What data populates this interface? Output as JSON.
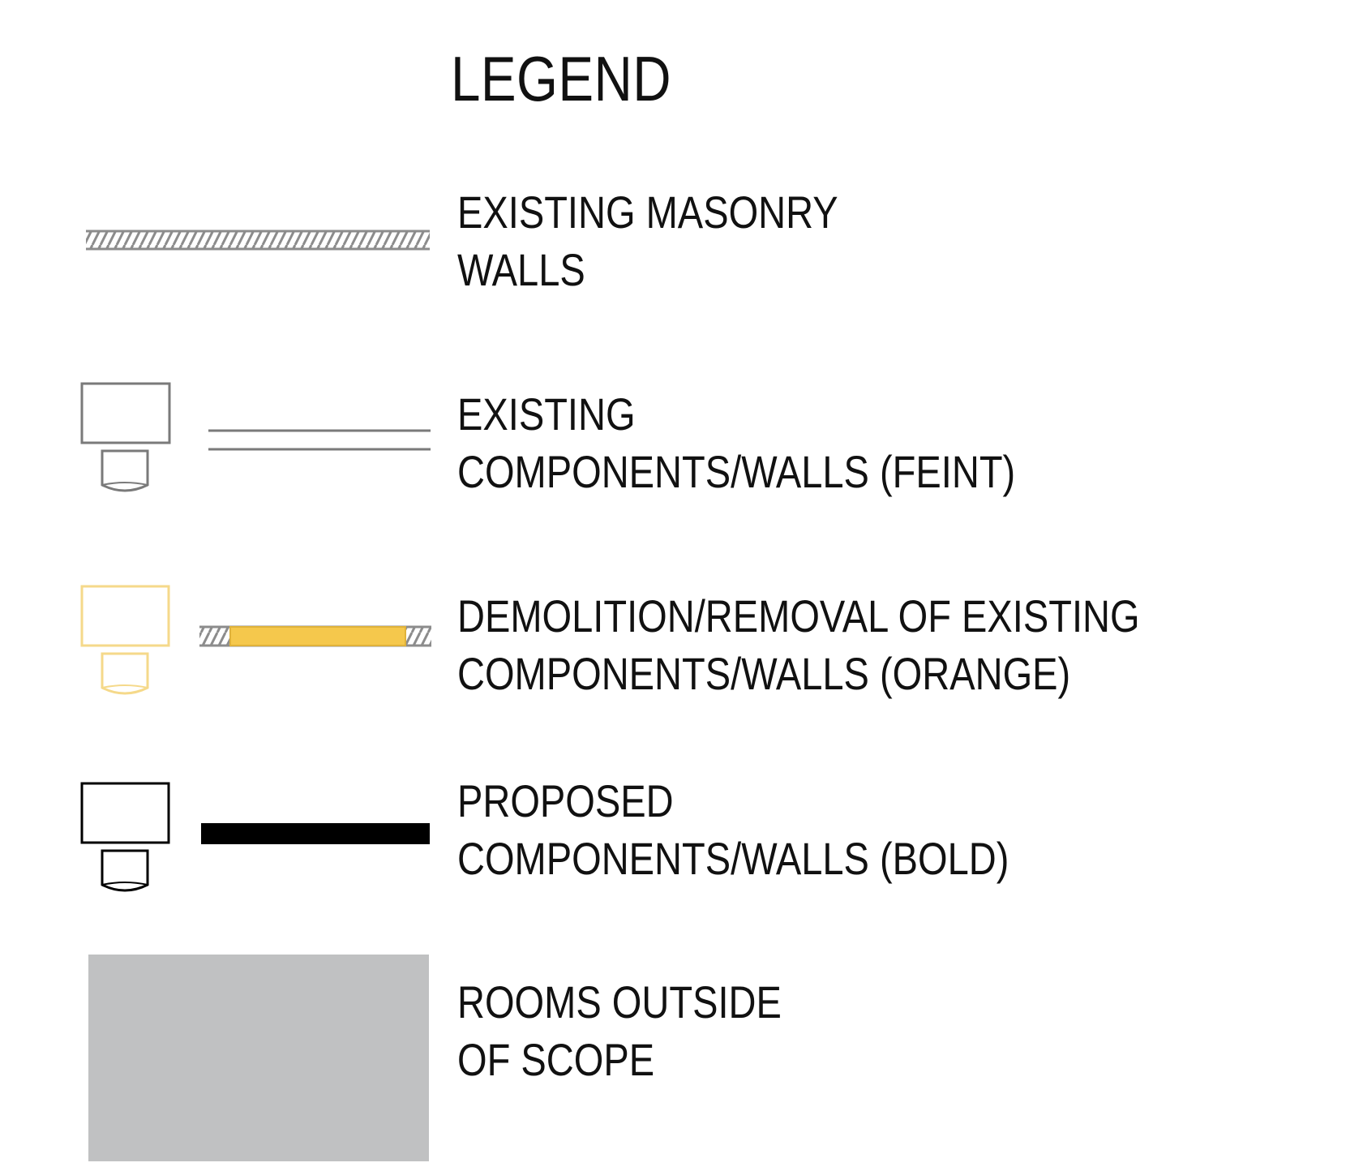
{
  "legend": {
    "title": "LEGEND",
    "items": [
      {
        "line1": "EXISTING MASONRY",
        "line2": "WALLS",
        "symbol": "hatched-wall-icon"
      },
      {
        "line1": "EXISTING",
        "line2": "COMPONENTS/WALLS (FEINT)",
        "symbol": "feint-wall-icon"
      },
      {
        "line1": "DEMOLITION/REMOVAL OF EXISTING",
        "line2": "COMPONENTS/WALLS (ORANGE)",
        "symbol": "demolition-wall-icon"
      },
      {
        "line1": "PROPOSED",
        "line2": "COMPONENTS/WALLS (BOLD)",
        "symbol": "bold-wall-icon"
      },
      {
        "line1": "ROOMS OUTSIDE",
        "line2": "OF SCOPE",
        "symbol": "grey-room-swatch"
      }
    ]
  },
  "colors": {
    "feint": "#7a7a7a",
    "masonry": "#8c8c8c",
    "demolition_fill": "#f5c84c",
    "demolition_outline": "#f5d98a",
    "bold": "#000000",
    "out_of_scope": "#c0c1c2"
  }
}
